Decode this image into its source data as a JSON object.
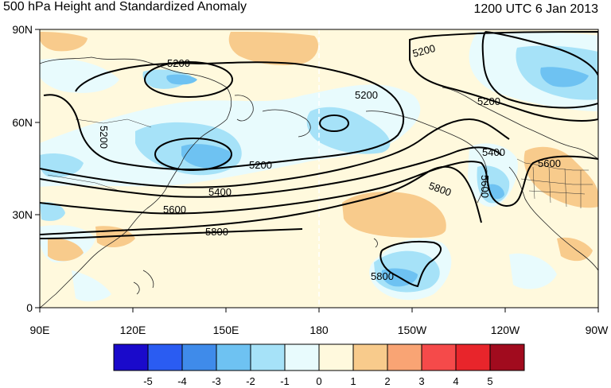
{
  "title": "500 hPa Height and Standardized Anomaly",
  "timestamp": "1200 UTC 6 Jan 2013",
  "map": {
    "lat_labels": [
      "90N",
      "60N",
      "30N",
      "0"
    ],
    "lon_labels": [
      "90E",
      "120E",
      "150E",
      "180",
      "150W",
      "120W",
      "90W"
    ],
    "contour_labels": [
      "5200",
      "5200",
      "5200",
      "5200",
      "5200",
      "5200",
      "5400",
      "5400",
      "5600",
      "5600",
      "5600",
      "5800",
      "5800",
      "5800"
    ]
  },
  "colorbar": {
    "ticks": [
      "-5",
      "-4",
      "-3",
      "-2",
      "-1",
      "0",
      "1",
      "2",
      "3",
      "4",
      "5"
    ],
    "colors": [
      "#1a0acb",
      "#2a5cf2",
      "#3f8bea",
      "#6ec2f2",
      "#a6e2f8",
      "#e8fbfd",
      "#fff9dd",
      "#f8cb8c",
      "#f9a474",
      "#f54a4a",
      "#e8252b",
      "#a10b1e"
    ]
  },
  "colors": {
    "neg_strong": "#6ec2f2",
    "neg_mid": "#a6e2f8",
    "neg_light": "#e8fbfd",
    "pos_light": "#fff9dd",
    "pos_mid": "#f8cb8c"
  }
}
